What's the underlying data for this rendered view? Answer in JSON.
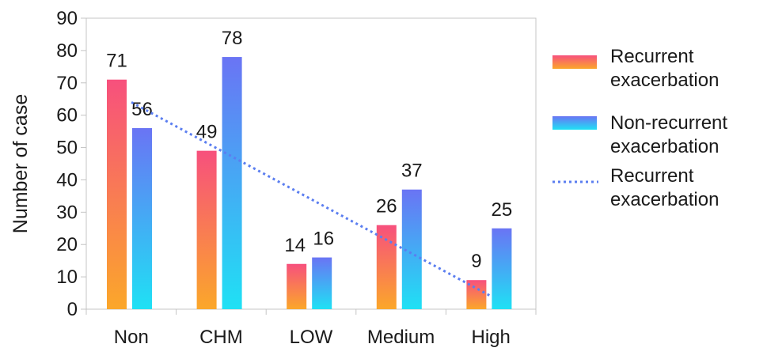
{
  "chart_data": {
    "type": "bar",
    "categories": [
      "Non",
      "CHM",
      "LOW",
      "Medium",
      "High"
    ],
    "ylabel": "Number of case",
    "xlabel": "",
    "ylim": [
      0,
      90
    ],
    "yticks": [
      0,
      10,
      20,
      30,
      40,
      50,
      60,
      70,
      80,
      90
    ],
    "grid": false,
    "legend_position": "right",
    "series": [
      {
        "name": "Recurrent exacerbation",
        "values": [
          71,
          49,
          14,
          26,
          9
        ],
        "color_top": "#f7507d",
        "color_bottom": "#fba72a"
      },
      {
        "name": "Non-recurrent exacerbation",
        "values": [
          56,
          78,
          16,
          37,
          25
        ],
        "color_top": "#6a74f4",
        "color_bottom": "#1fe1f4"
      }
    ],
    "trendline": {
      "name": "Recurrent exacerbation",
      "style": "dotted",
      "color": "#5b7ef0",
      "start": {
        "category": "Non",
        "value": 64
      },
      "end": {
        "category": "High",
        "value": 4
      }
    },
    "legend": [
      {
        "line1": "Recurrent",
        "line2": "exacerbation"
      },
      {
        "line1": "Non-recurrent",
        "line2": "exacerbation"
      },
      {
        "line1": "Recurrent",
        "line2": "exacerbation"
      }
    ]
  }
}
